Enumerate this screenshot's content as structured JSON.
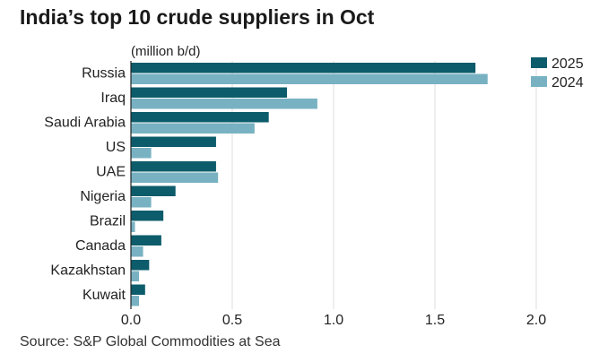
{
  "title": "India’s top 10 crude suppliers in Oct",
  "source": "Source: S&P Global Commodities at Sea",
  "colors": {
    "series_2025": "#0d5c6b",
    "series_2024": "#78b2c2",
    "grid": "#dddddd",
    "axis": "#222222"
  },
  "chart_data": {
    "type": "bar",
    "orientation": "horizontal",
    "title": "India’s top 10 crude suppliers in Oct",
    "ylabel": "(million b/d)",
    "categories": [
      "Russia",
      "Iraq",
      "Saudi Arabia",
      "US",
      "UAE",
      "Nigeria",
      "Brazil",
      "Canada",
      "Kazakhstan",
      "Kuwait"
    ],
    "series": [
      {
        "name": "2025",
        "values": [
          1.7,
          0.77,
          0.68,
          0.42,
          0.42,
          0.22,
          0.16,
          0.15,
          0.09,
          0.07
        ]
      },
      {
        "name": "2024",
        "values": [
          1.76,
          0.92,
          0.61,
          0.1,
          0.43,
          0.1,
          0.02,
          0.06,
          0.04,
          0.04
        ]
      }
    ],
    "xlim": [
      0,
      2.0
    ],
    "xticks": [
      "0.0",
      "0.5",
      "1.0",
      "1.5",
      "2.0"
    ],
    "grid": true,
    "legend_position": "top-right"
  }
}
